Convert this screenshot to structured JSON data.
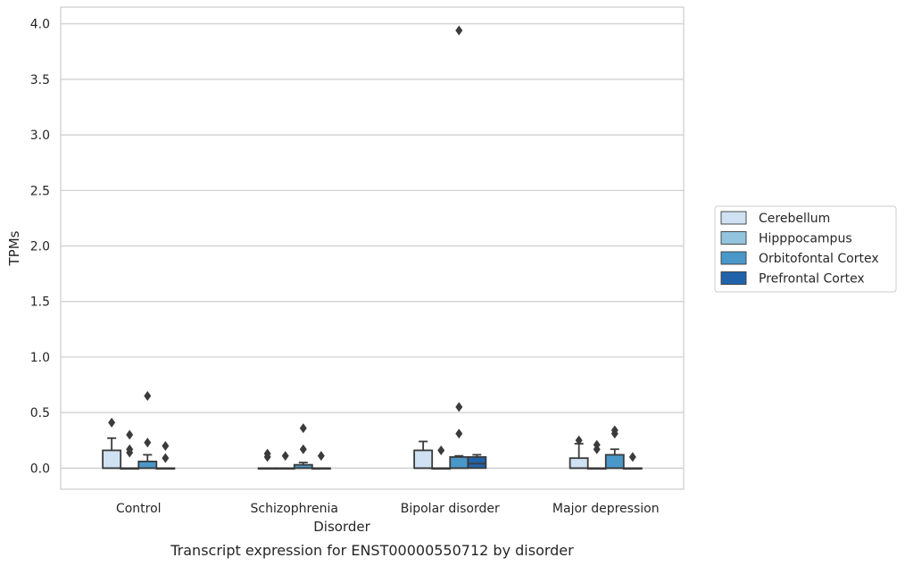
{
  "caption": "Transcript expression for ENST00000550712 by disorder",
  "chart_data": {
    "type": "box",
    "title": "",
    "xlabel": "Disorder",
    "ylabel": "TPMs",
    "ylim": [
      -0.19,
      4.15
    ],
    "yticks": [
      0.0,
      0.5,
      1.0,
      1.5,
      2.0,
      2.5,
      3.0,
      3.5,
      4.0
    ],
    "ytick_labels": [
      "0.0",
      "0.5",
      "1.0",
      "1.5",
      "2.0",
      "2.5",
      "3.0",
      "3.5",
      "4.0"
    ],
    "grid": true,
    "legend_position": "right",
    "categories": [
      "Control",
      "Schizophrenia",
      "Bipolar disorder",
      "Major depression"
    ],
    "series": [
      {
        "name": "Cerebellum",
        "color": "#cfe1f2",
        "boxes": [
          {
            "q1": 0.0,
            "median": 0.0,
            "q3": 0.16,
            "whisker_low": 0.0,
            "whisker_high": 0.27,
            "outliers": [
              0.41
            ]
          },
          {
            "q1": 0.0,
            "median": 0.0,
            "q3": 0.0,
            "whisker_low": 0.0,
            "whisker_high": 0.0,
            "outliers": [
              0.1,
              0.13
            ]
          },
          {
            "q1": 0.0,
            "median": 0.0,
            "q3": 0.16,
            "whisker_low": 0.0,
            "whisker_high": 0.24,
            "outliers": []
          },
          {
            "q1": 0.0,
            "median": 0.0,
            "q3": 0.09,
            "whisker_low": 0.0,
            "whisker_high": 0.22,
            "outliers": [
              0.25
            ]
          }
        ]
      },
      {
        "name": "Hipppocampus",
        "color": "#93c4de",
        "boxes": [
          {
            "q1": 0.0,
            "median": 0.0,
            "q3": 0.0,
            "whisker_low": 0.0,
            "whisker_high": 0.0,
            "outliers": [
              0.14,
              0.17,
              0.3
            ]
          },
          {
            "q1": 0.0,
            "median": 0.0,
            "q3": 0.0,
            "whisker_low": 0.0,
            "whisker_high": 0.0,
            "outliers": [
              0.11
            ]
          },
          {
            "q1": 0.0,
            "median": 0.0,
            "q3": 0.0,
            "whisker_low": 0.0,
            "whisker_high": 0.0,
            "outliers": [
              0.16
            ]
          },
          {
            "q1": 0.0,
            "median": 0.0,
            "q3": 0.0,
            "whisker_low": 0.0,
            "whisker_high": 0.0,
            "outliers": [
              0.17,
              0.21
            ]
          }
        ]
      },
      {
        "name": "Orbitofontal Cortex",
        "color": "#4a98c9",
        "boxes": [
          {
            "q1": 0.0,
            "median": 0.0,
            "q3": 0.06,
            "whisker_low": 0.0,
            "whisker_high": 0.12,
            "outliers": [
              0.23,
              0.65
            ]
          },
          {
            "q1": 0.0,
            "median": 0.0,
            "q3": 0.03,
            "whisker_low": 0.0,
            "whisker_high": 0.05,
            "outliers": [
              0.17,
              0.36
            ]
          },
          {
            "q1": 0.0,
            "median": 0.0,
            "q3": 0.1,
            "whisker_low": 0.0,
            "whisker_high": 0.11,
            "outliers": [
              0.31,
              0.55,
              3.94
            ]
          },
          {
            "q1": 0.0,
            "median": 0.0,
            "q3": 0.12,
            "whisker_low": 0.0,
            "whisker_high": 0.17,
            "outliers": [
              0.31,
              0.34
            ]
          }
        ]
      },
      {
        "name": "Prefrontal Cortex",
        "color": "#2163aa",
        "boxes": [
          {
            "q1": 0.0,
            "median": 0.0,
            "q3": 0.0,
            "whisker_low": 0.0,
            "whisker_high": 0.0,
            "outliers": [
              0.09,
              0.2
            ]
          },
          {
            "q1": 0.0,
            "median": 0.0,
            "q3": 0.0,
            "whisker_low": 0.0,
            "whisker_high": 0.0,
            "outliers": [
              0.11
            ]
          },
          {
            "q1": 0.0,
            "median": 0.04,
            "q3": 0.1,
            "whisker_low": 0.0,
            "whisker_high": 0.12,
            "outliers": []
          },
          {
            "q1": 0.0,
            "median": 0.0,
            "q3": 0.0,
            "whisker_low": 0.0,
            "whisker_high": 0.0,
            "outliers": [
              0.1
            ]
          }
        ]
      }
    ]
  }
}
